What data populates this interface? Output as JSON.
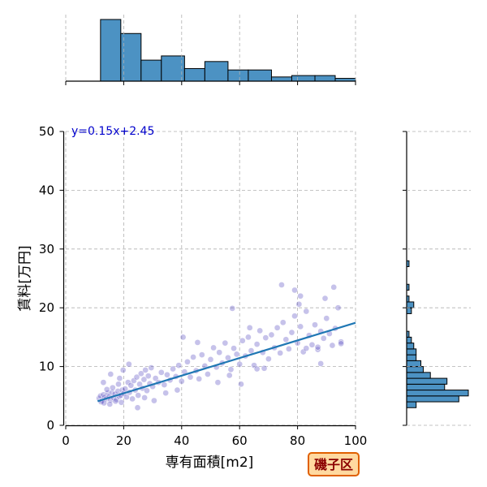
{
  "chart_data": {
    "type": "scatter",
    "xlabel": "専有面積[m2]",
    "ylabel": "賃料[万円]",
    "xlim": [
      0,
      100
    ],
    "ylim": [
      0,
      50
    ],
    "x_ticks": [
      "0",
      "20",
      "40",
      "60",
      "80",
      "100"
    ],
    "y_ticks": [
      "0",
      "10",
      "20",
      "30",
      "40",
      "50"
    ],
    "grid": true,
    "annotation": "y=0.15x+2.45",
    "badge": "磯子区",
    "regression": {
      "slope": 0.15,
      "intercept": 2.45,
      "x_range": [
        11,
        100
      ]
    },
    "colors": {
      "points": "#5b4fc4",
      "regression_line": "#1f77b4",
      "histogram": "#4c92c3",
      "histogram_edge": "#000000",
      "grid": "#b0b0b0",
      "annotation": "#0000cc",
      "badge_fill": "#ffd9a0",
      "badge_border": "#e06000",
      "badge_text": "#8b0000"
    },
    "top_histogram": {
      "bins": [
        [
          12,
          19
        ],
        [
          19,
          26
        ],
        [
          26,
          33
        ],
        [
          33,
          41
        ],
        [
          41,
          48
        ],
        [
          48,
          56
        ],
        [
          56,
          63
        ],
        [
          63,
          71
        ],
        [
          71,
          78
        ],
        [
          78,
          86
        ],
        [
          86,
          93
        ],
        [
          93,
          100
        ]
      ],
      "counts": [
        44,
        34,
        15,
        18,
        9,
        14,
        8,
        8,
        3,
        4,
        4,
        2
      ]
    },
    "right_histogram": {
      "bins": [
        [
          3,
          4
        ],
        [
          4,
          5
        ],
        [
          5,
          6
        ],
        [
          6,
          7
        ],
        [
          7,
          8
        ],
        [
          8,
          9
        ],
        [
          9,
          10
        ],
        [
          10,
          11
        ],
        [
          11,
          12
        ],
        [
          12,
          13
        ],
        [
          13,
          14
        ],
        [
          14,
          15
        ],
        [
          15,
          16
        ],
        [
          16,
          17
        ],
        [
          17,
          18
        ],
        [
          18,
          19
        ],
        [
          19,
          20
        ],
        [
          20,
          21
        ],
        [
          21,
          22
        ],
        [
          22,
          23
        ],
        [
          23,
          24
        ],
        [
          24,
          25
        ],
        [
          25,
          26
        ],
        [
          26,
          27
        ],
        [
          27,
          28
        ],
        [
          28,
          29
        ]
      ],
      "counts": [
        4,
        22,
        26,
        16,
        17,
        10,
        7,
        6,
        4,
        4,
        3,
        2,
        1,
        0,
        0,
        0,
        2,
        3,
        1,
        0,
        1,
        0,
        0,
        0,
        1,
        0
      ]
    },
    "points": [
      [
        11.5,
        4.6
      ],
      [
        12.0,
        5.0
      ],
      [
        12.5,
        4.2
      ],
      [
        13.0,
        5.2
      ],
      [
        13.5,
        4.8
      ],
      [
        14.0,
        4.5
      ],
      [
        14.5,
        5.5
      ],
      [
        15.0,
        4.9
      ],
      [
        15.5,
        4.3
      ],
      [
        16.0,
        5.6
      ],
      [
        16.5,
        4.7
      ],
      [
        17.0,
        5.3
      ],
      [
        17.5,
        4.4
      ],
      [
        18.0,
        5.8
      ],
      [
        18.5,
        4.9
      ],
      [
        19.0,
        5.1
      ],
      [
        19.5,
        6.0
      ],
      [
        12.2,
        4.0
      ],
      [
        13.2,
        3.8
      ],
      [
        14.2,
        6.1
      ],
      [
        15.2,
        3.6
      ],
      [
        16.2,
        6.4
      ],
      [
        17.2,
        4.1
      ],
      [
        18.2,
        7.0
      ],
      [
        19.2,
        3.9
      ],
      [
        20.0,
        5.4
      ],
      [
        20.5,
        6.2
      ],
      [
        21.0,
        4.8
      ],
      [
        21.5,
        7.3
      ],
      [
        22.0,
        5.6
      ],
      [
        22.5,
        6.8
      ],
      [
        23.0,
        4.5
      ],
      [
        23.5,
        7.6
      ],
      [
        24.0,
        6.0
      ],
      [
        24.5,
        8.2
      ],
      [
        25.0,
        5.1
      ],
      [
        25.5,
        7.0
      ],
      [
        26.0,
        8.8
      ],
      [
        26.5,
        6.3
      ],
      [
        27.0,
        7.8
      ],
      [
        27.5,
        9.4
      ],
      [
        28.0,
        5.9
      ],
      [
        28.5,
        8.4
      ],
      [
        29.0,
        7.1
      ],
      [
        29.5,
        9.8
      ],
      [
        30.0,
        6.6
      ],
      [
        31.0,
        8.0
      ],
      [
        32.0,
        7.3
      ],
      [
        33.0,
        9.0
      ],
      [
        34.0,
        6.9
      ],
      [
        35.0,
        8.6
      ],
      [
        36.0,
        7.7
      ],
      [
        37.0,
        9.6
      ],
      [
        38.0,
        8.3
      ],
      [
        39.0,
        10.2
      ],
      [
        40.0,
        7.5
      ],
      [
        13.0,
        7.3
      ],
      [
        15.5,
        8.7
      ],
      [
        19.8,
        9.4
      ],
      [
        21.8,
        10.4
      ],
      [
        18.6,
        8.0
      ],
      [
        24.8,
        3.0
      ],
      [
        27.2,
        4.7
      ],
      [
        30.5,
        4.2
      ],
      [
        34.5,
        5.5
      ],
      [
        38.5,
        6.0
      ],
      [
        41.0,
        9.1
      ],
      [
        42.0,
        10.8
      ],
      [
        43.0,
        8.2
      ],
      [
        44.0,
        11.6
      ],
      [
        45.0,
        9.3
      ],
      [
        46.0,
        7.9
      ],
      [
        47.0,
        12.0
      ],
      [
        48.0,
        10.1
      ],
      [
        49.0,
        8.7
      ],
      [
        50.0,
        11.2
      ],
      [
        51.0,
        13.2
      ],
      [
        52.0,
        9.9
      ],
      [
        53.0,
        12.4
      ],
      [
        54.0,
        10.6
      ],
      [
        55.0,
        14.0
      ],
      [
        56.0,
        11.5
      ],
      [
        57.0,
        9.5
      ],
      [
        58.0,
        13.1
      ],
      [
        59.0,
        12.1
      ],
      [
        60.0,
        10.4
      ],
      [
        61.0,
        14.4
      ],
      [
        62.0,
        11.8
      ],
      [
        63.0,
        15.0
      ],
      [
        64.0,
        12.7
      ],
      [
        65.0,
        10.2
      ],
      [
        66.0,
        13.8
      ],
      [
        67.0,
        16.1
      ],
      [
        68.0,
        12.4
      ],
      [
        69.0,
        14.9
      ],
      [
        70.0,
        11.3
      ],
      [
        40.5,
        15.0
      ],
      [
        45.5,
        14.1
      ],
      [
        57.5,
        19.9
      ],
      [
        63.5,
        16.6
      ],
      [
        66.0,
        9.6
      ],
      [
        68.5,
        9.7
      ],
      [
        60.5,
        7.0
      ],
      [
        52.5,
        7.3
      ],
      [
        56.5,
        8.5
      ],
      [
        71.0,
        15.4
      ],
      [
        72.0,
        13.2
      ],
      [
        73.0,
        16.6
      ],
      [
        74.0,
        12.3
      ],
      [
        75.0,
        17.5
      ],
      [
        76.0,
        14.6
      ],
      [
        77.0,
        13.0
      ],
      [
        78.0,
        15.8
      ],
      [
        79.0,
        18.6
      ],
      [
        80.0,
        14.0
      ],
      [
        81.0,
        16.8
      ],
      [
        82.0,
        12.5
      ],
      [
        83.0,
        19.4
      ],
      [
        84.0,
        15.3
      ],
      [
        85.0,
        13.7
      ],
      [
        86.0,
        17.1
      ],
      [
        87.0,
        12.9
      ],
      [
        88.0,
        16.0
      ],
      [
        89.0,
        14.8
      ],
      [
        90.0,
        18.2
      ],
      [
        91.0,
        15.6
      ],
      [
        92.0,
        13.6
      ],
      [
        93.0,
        16.5
      ],
      [
        94.0,
        20.0
      ],
      [
        95.0,
        14.2
      ],
      [
        74.5,
        23.9
      ],
      [
        80.5,
        20.6
      ],
      [
        81.0,
        22.0
      ],
      [
        79.0,
        23.0
      ],
      [
        92.5,
        23.5
      ],
      [
        89.5,
        21.6
      ],
      [
        83.0,
        13.1
      ],
      [
        87.0,
        13.3
      ],
      [
        95.0,
        13.9
      ],
      [
        88.0,
        10.5
      ]
    ]
  }
}
